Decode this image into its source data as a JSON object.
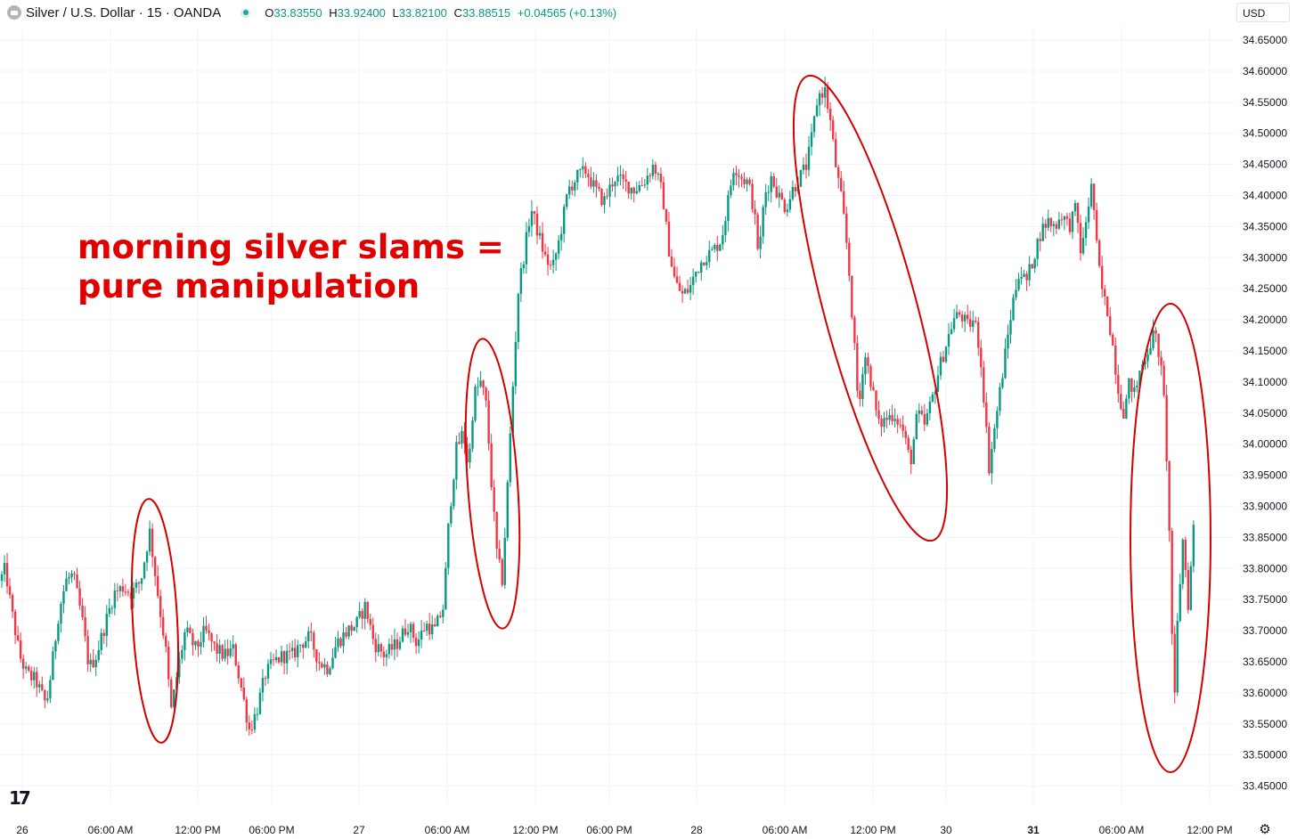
{
  "header": {
    "title": "Silver / U.S. Dollar · 15 · OANDA",
    "open_label": "O",
    "open": "33.83550",
    "high_label": "H",
    "high": "33.92400",
    "low_label": "L",
    "low": "33.82100",
    "close_label": "C",
    "close": "33.88515",
    "change": "+0.04565 (+0.13%)"
  },
  "currency": "USD",
  "annotation": {
    "line1": "morning silver slams =",
    "line2": "pure manipulation",
    "color": "#e00000"
  },
  "colors": {
    "up": "#089981",
    "down": "#f23645",
    "grid": "#f0f3fa",
    "highlight": "#d40000"
  },
  "icons": {
    "logo": "tradingview-logo",
    "settings": "gear-icon",
    "symbol": "silver-icon",
    "status": "market-status-icon"
  },
  "chart_data": {
    "type": "candlestick",
    "title": "Silver / U.S. Dollar · 15 · OANDA",
    "y_ticks": [
      "34.65000",
      "34.60000",
      "34.55000",
      "34.50000",
      "34.45000",
      "34.40000",
      "34.35000",
      "34.30000",
      "34.25000",
      "34.20000",
      "34.15000",
      "34.10000",
      "34.05000",
      "34.00000",
      "33.95000",
      "33.90000",
      "33.85000",
      "33.80000",
      "33.75000",
      "33.70000",
      "33.65000",
      "33.60000",
      "33.55000",
      "33.50000",
      "33.45000"
    ],
    "x_ticks": [
      "26",
      "06:00 AM",
      "12:00 PM",
      "06:00 PM",
      "27",
      "06:00 AM",
      "12:00 PM",
      "06:00 PM",
      "28",
      "06:00 AM",
      "12:00 PM",
      "30",
      "31",
      "06:00 AM",
      "12:00 PM"
    ],
    "bold_x_ticks": [
      "31"
    ],
    "ylim": [
      33.45,
      34.65
    ],
    "grid": true,
    "price_path": [
      [
        0,
        33.78
      ],
      [
        6,
        33.8
      ],
      [
        12,
        33.74
      ],
      [
        22,
        33.66
      ],
      [
        30,
        33.63
      ],
      [
        40,
        33.62
      ],
      [
        52,
        33.58
      ],
      [
        58,
        33.64
      ],
      [
        66,
        33.73
      ],
      [
        74,
        33.78
      ],
      [
        82,
        33.79
      ],
      [
        92,
        33.72
      ],
      [
        100,
        33.64
      ],
      [
        108,
        33.66
      ],
      [
        118,
        33.71
      ],
      [
        128,
        33.76
      ],
      [
        138,
        33.77
      ],
      [
        148,
        33.76
      ],
      [
        158,
        33.78
      ],
      [
        168,
        33.86
      ],
      [
        178,
        33.75
      ],
      [
        186,
        33.67
      ],
      [
        192,
        33.57
      ],
      [
        200,
        33.64
      ],
      [
        208,
        33.7
      ],
      [
        220,
        33.67
      ],
      [
        230,
        33.7
      ],
      [
        242,
        33.67
      ],
      [
        252,
        33.66
      ],
      [
        262,
        33.67
      ],
      [
        272,
        33.6
      ],
      [
        280,
        33.54
      ],
      [
        288,
        33.57
      ],
      [
        298,
        33.63
      ],
      [
        308,
        33.65
      ],
      [
        318,
        33.66
      ],
      [
        328,
        33.66
      ],
      [
        338,
        33.68
      ],
      [
        348,
        33.69
      ],
      [
        358,
        33.65
      ],
      [
        368,
        33.64
      ],
      [
        378,
        33.68
      ],
      [
        390,
        33.7
      ],
      [
        400,
        33.71
      ],
      [
        410,
        33.74
      ],
      [
        420,
        33.68
      ],
      [
        432,
        33.66
      ],
      [
        446,
        33.68
      ],
      [
        458,
        33.71
      ],
      [
        468,
        33.68
      ],
      [
        478,
        33.71
      ],
      [
        488,
        33.7
      ],
      [
        498,
        33.74
      ],
      [
        504,
        33.88
      ],
      [
        512,
        33.99
      ],
      [
        520,
        34.02
      ],
      [
        526,
        33.96
      ],
      [
        532,
        34.08
      ],
      [
        540,
        34.1
      ],
      [
        546,
        34.06
      ],
      [
        552,
        33.93
      ],
      [
        558,
        33.82
      ],
      [
        564,
        33.78
      ],
      [
        570,
        33.94
      ],
      [
        576,
        34.1
      ],
      [
        582,
        34.25
      ],
      [
        590,
        34.32
      ],
      [
        596,
        34.38
      ],
      [
        604,
        34.34
      ],
      [
        612,
        34.3
      ],
      [
        620,
        34.28
      ],
      [
        628,
        34.33
      ],
      [
        638,
        34.41
      ],
      [
        648,
        34.43
      ],
      [
        658,
        34.44
      ],
      [
        668,
        34.41
      ],
      [
        678,
        34.39
      ],
      [
        690,
        34.43
      ],
      [
        700,
        34.42
      ],
      [
        712,
        34.41
      ],
      [
        722,
        34.42
      ],
      [
        734,
        34.45
      ],
      [
        744,
        34.4
      ],
      [
        750,
        34.32
      ],
      [
        758,
        34.26
      ],
      [
        766,
        34.24
      ],
      [
        774,
        34.25
      ],
      [
        782,
        34.28
      ],
      [
        790,
        34.3
      ],
      [
        800,
        34.31
      ],
      [
        810,
        34.33
      ],
      [
        816,
        34.38
      ],
      [
        824,
        34.45
      ],
      [
        832,
        34.43
      ],
      [
        840,
        34.42
      ],
      [
        846,
        34.38
      ],
      [
        852,
        34.3
      ],
      [
        858,
        34.4
      ],
      [
        866,
        34.43
      ],
      [
        874,
        34.4
      ],
      [
        882,
        34.38
      ],
      [
        890,
        34.41
      ],
      [
        898,
        34.43
      ],
      [
        906,
        34.45
      ],
      [
        912,
        34.5
      ],
      [
        918,
        34.56
      ],
      [
        926,
        34.57
      ],
      [
        932,
        34.52
      ],
      [
        938,
        34.45
      ],
      [
        946,
        34.38
      ],
      [
        952,
        34.3
      ],
      [
        958,
        34.18
      ],
      [
        964,
        34.05
      ],
      [
        970,
        34.15
      ],
      [
        978,
        34.1
      ],
      [
        986,
        34.03
      ],
      [
        994,
        34.04
      ],
      [
        1004,
        34.05
      ],
      [
        1014,
        34.02
      ],
      [
        1022,
        33.97
      ],
      [
        1030,
        34.05
      ],
      [
        1038,
        34.03
      ],
      [
        1046,
        34.07
      ],
      [
        1054,
        34.12
      ],
      [
        1062,
        34.16
      ],
      [
        1070,
        34.2
      ],
      [
        1078,
        34.21
      ],
      [
        1086,
        34.19
      ],
      [
        1094,
        34.2
      ],
      [
        1100,
        34.15
      ],
      [
        1106,
        34.05
      ],
      [
        1110,
        33.96
      ],
      [
        1116,
        34.02
      ],
      [
        1122,
        34.08
      ],
      [
        1128,
        34.14
      ],
      [
        1136,
        34.22
      ],
      [
        1144,
        34.28
      ],
      [
        1152,
        34.26
      ],
      [
        1160,
        34.3
      ],
      [
        1168,
        34.34
      ],
      [
        1176,
        34.36
      ],
      [
        1184,
        34.35
      ],
      [
        1192,
        34.37
      ],
      [
        1200,
        34.35
      ],
      [
        1208,
        34.38
      ],
      [
        1214,
        34.3
      ],
      [
        1220,
        34.37
      ],
      [
        1226,
        34.42
      ],
      [
        1232,
        34.3
      ],
      [
        1238,
        34.24
      ],
      [
        1244,
        34.21
      ],
      [
        1250,
        34.15
      ],
      [
        1256,
        34.08
      ],
      [
        1262,
        34.05
      ],
      [
        1268,
        34.1
      ],
      [
        1274,
        34.08
      ],
      [
        1280,
        34.12
      ],
      [
        1288,
        34.15
      ],
      [
        1296,
        34.18
      ],
      [
        1302,
        34.14
      ],
      [
        1308,
        34.05
      ],
      [
        1314,
        33.8
      ],
      [
        1318,
        33.56
      ],
      [
        1322,
        33.72
      ],
      [
        1328,
        33.85
      ],
      [
        1334,
        33.74
      ],
      [
        1340,
        33.87
      ]
    ],
    "ellipses": [
      {
        "cx": 174,
        "cy": 697,
        "rx": 25,
        "ry": 137,
        "rot": -3
      },
      {
        "cx": 553,
        "cy": 543,
        "rx": 28,
        "ry": 163,
        "rot": -4
      },
      {
        "cx": 977,
        "cy": 346,
        "rx": 52,
        "ry": 270,
        "rot": -15
      },
      {
        "cx": 1314,
        "cy": 604,
        "rx": 45,
        "ry": 263,
        "rot": 0
      }
    ]
  }
}
